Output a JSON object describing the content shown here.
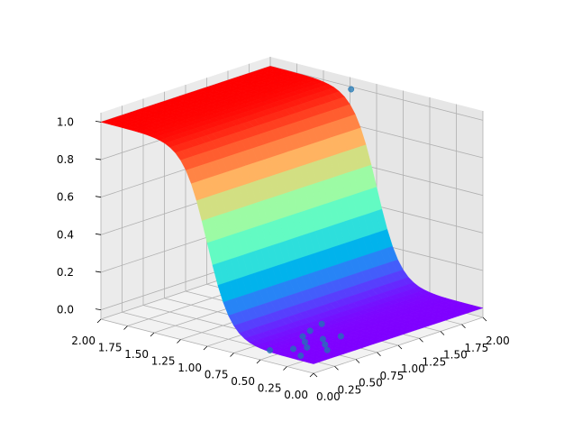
{
  "chart_data": {
    "type": "surface3d",
    "title": "",
    "xlabel": "",
    "ylabel": "",
    "zlabel": "",
    "x_range": [
      0,
      2
    ],
    "y_range": [
      0,
      2
    ],
    "z_range": [
      -0.05,
      1.05
    ],
    "x_ticks": [
      "0.00",
      "0.25",
      "0.50",
      "0.75",
      "1.00",
      "1.25",
      "1.50",
      "1.75",
      "2.00"
    ],
    "y_ticks": [
      "0.00",
      "0.25",
      "0.50",
      "0.75",
      "1.00",
      "1.25",
      "1.50",
      "1.75",
      "2.00"
    ],
    "z_ticks": [
      "0.0",
      "0.2",
      "0.4",
      "0.6",
      "0.8",
      "1.0"
    ],
    "grid": true,
    "surface": {
      "function": "logistic sigmoid of y",
      "center_y": 1.0,
      "steepness": 9,
      "colormap": "rainbow"
    },
    "scatter": {
      "color": "#1f77b4",
      "points": [
        {
          "x": 0.1,
          "y": 0.2,
          "z": 0
        },
        {
          "x": 0.2,
          "y": 0.35,
          "z": 0
        },
        {
          "x": 0.05,
          "y": 0.45,
          "z": 0
        },
        {
          "x": 0.35,
          "y": 0.15,
          "z": 0
        },
        {
          "x": 0.3,
          "y": 0.3,
          "z": 0
        },
        {
          "x": 0.45,
          "y": 0.25,
          "z": 0
        },
        {
          "x": 0.4,
          "y": 0.4,
          "z": 0
        },
        {
          "x": 0.55,
          "y": 0.35,
          "z": 0
        },
        {
          "x": 0.5,
          "y": 0.5,
          "z": 0
        },
        {
          "x": 0.7,
          "y": 0.3,
          "z": 0
        },
        {
          "x": 0.65,
          "y": 0.55,
          "z": 0
        },
        {
          "x": 0.85,
          "y": 0.6,
          "z": 0
        },
        {
          "x": 1.3,
          "y": 1.5,
          "z": 1
        },
        {
          "x": 1.5,
          "y": 1.6,
          "z": 1
        },
        {
          "x": 1.7,
          "y": 1.7,
          "z": 1
        },
        {
          "x": 1.9,
          "y": 1.85,
          "z": 1
        },
        {
          "x": 1.6,
          "y": 1.9,
          "z": 1
        },
        {
          "x": 1.2,
          "y": 1.95,
          "z": 1
        },
        {
          "x": 1.0,
          "y": 1.8,
          "z": 1
        },
        {
          "x": 0.8,
          "y": 1.95,
          "z": 1
        },
        {
          "x": 0.5,
          "y": 1.85,
          "z": 1
        },
        {
          "x": 0.3,
          "y": 1.95,
          "z": 1
        },
        {
          "x": 0.1,
          "y": 1.7,
          "z": 1
        },
        {
          "x": 0.2,
          "y": 1.5,
          "z": 1
        },
        {
          "x": 0.6,
          "y": 1.55,
          "z": 1
        },
        {
          "x": 1.1,
          "y": 1.4,
          "z": 1
        },
        {
          "x": 1.8,
          "y": 1.45,
          "z": 1
        },
        {
          "x": 1.95,
          "y": 1.2,
          "z": 1
        },
        {
          "x": 0.9,
          "y": 1.3,
          "z": 1
        }
      ]
    }
  }
}
